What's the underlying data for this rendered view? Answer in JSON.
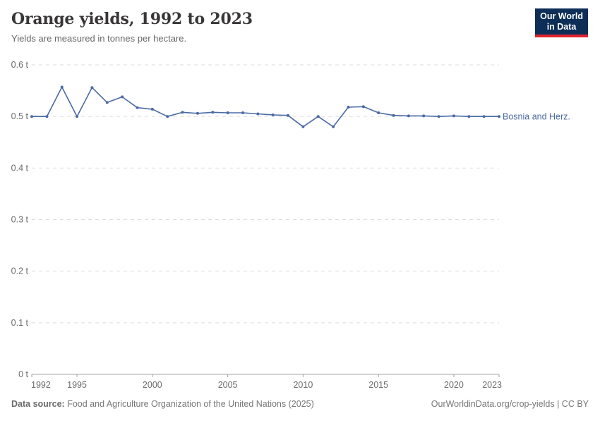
{
  "header": {
    "title": "Orange yields, 1992 to 2023",
    "subtitle": "Yields are measured in tonnes per hectare.",
    "logo": {
      "line1": "Our World",
      "line2": "in Data"
    }
  },
  "colors": {
    "series_line": "#4a6aa5",
    "logo_bg": "#0d2e57",
    "logo_accent": "#e0232d",
    "grid": "#dcdcdc",
    "axis": "#a3a3a3",
    "tick_label": "#6b6b6b",
    "title": "#383636",
    "subtitle": "#666666"
  },
  "chart_data": {
    "type": "line",
    "title": "Orange yields, 1992 to 2023",
    "subtitle": "Yields are measured in tonnes per hectare.",
    "unit": "tonnes per hectare",
    "x": [
      1992,
      1993,
      1994,
      1995,
      1996,
      1997,
      1998,
      1999,
      2000,
      2001,
      2002,
      2003,
      2004,
      2005,
      2006,
      2007,
      2008,
      2009,
      2010,
      2011,
      2012,
      2013,
      2014,
      2015,
      2016,
      2017,
      2018,
      2019,
      2020,
      2021,
      2022,
      2023
    ],
    "series": [
      {
        "name": "Bosnia and Herz.",
        "color": "#4a6aa5",
        "values": [
          0.5,
          0.5,
          0.557,
          0.5,
          0.556,
          0.527,
          0.538,
          0.517,
          0.514,
          0.5,
          0.508,
          0.506,
          0.508,
          0.507,
          0.507,
          0.505,
          0.503,
          0.502,
          0.48,
          0.5,
          0.48,
          0.518,
          0.519,
          0.507,
          0.502,
          0.501,
          0.501,
          0.5,
          0.501,
          0.5,
          0.5,
          0.5
        ]
      }
    ],
    "xlim": [
      1992,
      2023
    ],
    "ylim": [
      0,
      0.6
    ],
    "xticks": [
      1992,
      1995,
      2000,
      2005,
      2010,
      2015,
      2020,
      2023
    ],
    "yticks": [
      {
        "value": 0,
        "label": "0 t"
      },
      {
        "value": 0.1,
        "label": "0.1 t"
      },
      {
        "value": 0.2,
        "label": "0.2 t"
      },
      {
        "value": 0.3,
        "label": "0.3 t"
      },
      {
        "value": 0.4,
        "label": "0.4 t"
      },
      {
        "value": 0.5,
        "label": "0.5 t"
      },
      {
        "value": 0.6,
        "label": "0.6 t"
      }
    ],
    "grid": "horizontal-dashed",
    "legend_position": "end-of-line-label"
  },
  "footer": {
    "source_label": "Data source:",
    "source_text": "Food and Agriculture Organization of the United Nations (2025)",
    "link_text": "OurWorldinData.org/crop-yields | CC BY"
  }
}
